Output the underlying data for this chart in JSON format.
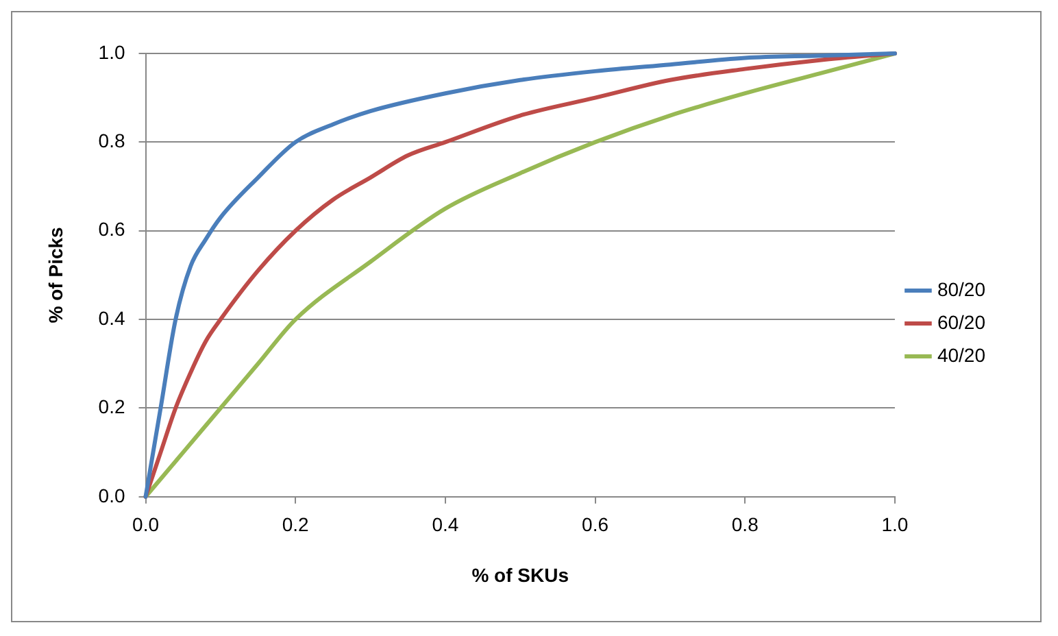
{
  "chart_data": {
    "type": "line",
    "xlabel": "% of SKUs",
    "ylabel": "% of Picks",
    "xlim": [
      0,
      1
    ],
    "ylim": [
      0,
      1
    ],
    "xticks": [
      {
        "value": 0,
        "label": "0.0"
      },
      {
        "value": 0.2,
        "label": "0.2"
      },
      {
        "value": 0.4,
        "label": "0.4"
      },
      {
        "value": 0.6,
        "label": "0.6"
      },
      {
        "value": 0.8,
        "label": "0.8"
      },
      {
        "value": 1,
        "label": "1.0"
      }
    ],
    "yticks": [
      {
        "value": 0,
        "label": "0.0"
      },
      {
        "value": 0.2,
        "label": "0.2"
      },
      {
        "value": 0.4,
        "label": "0.4"
      },
      {
        "value": 0.6,
        "label": "0.6"
      },
      {
        "value": 0.8,
        "label": "0.8"
      },
      {
        "value": 1,
        "label": "1.0"
      }
    ],
    "grid": "y",
    "legend": "right",
    "marker": "none",
    "line_style": "solid",
    "series": [
      {
        "name": "80/20",
        "color": "#4a7ebb",
        "x": [
          0,
          0.02,
          0.04,
          0.06,
          0.08,
          0.1,
          0.15,
          0.2,
          0.25,
          0.3,
          0.4,
          0.5,
          0.6,
          0.7,
          0.8,
          0.9,
          1
        ],
        "values": [
          0,
          0.2,
          0.4,
          0.52,
          0.58,
          0.63,
          0.72,
          0.8,
          0.84,
          0.87,
          0.91,
          0.94,
          0.96,
          0.975,
          0.99,
          0.995,
          1
        ]
      },
      {
        "name": "60/20",
        "color": "#be4b48",
        "x": [
          0,
          0.02,
          0.04,
          0.06,
          0.08,
          0.1,
          0.15,
          0.2,
          0.25,
          0.3,
          0.35,
          0.4,
          0.5,
          0.6,
          0.7,
          0.8,
          0.9,
          1
        ],
        "values": [
          0,
          0.1,
          0.2,
          0.28,
          0.35,
          0.4,
          0.51,
          0.6,
          0.67,
          0.72,
          0.77,
          0.8,
          0.86,
          0.9,
          0.94,
          0.965,
          0.985,
          1
        ]
      },
      {
        "name": "40/20",
        "color": "#98b954",
        "x": [
          0,
          0.05,
          0.1,
          0.15,
          0.2,
          0.3,
          0.4,
          0.5,
          0.6,
          0.7,
          0.8,
          0.9,
          1
        ],
        "values": [
          0,
          0.1,
          0.2,
          0.3,
          0.4,
          0.53,
          0.65,
          0.73,
          0.8,
          0.86,
          0.91,
          0.955,
          1
        ]
      }
    ]
  }
}
